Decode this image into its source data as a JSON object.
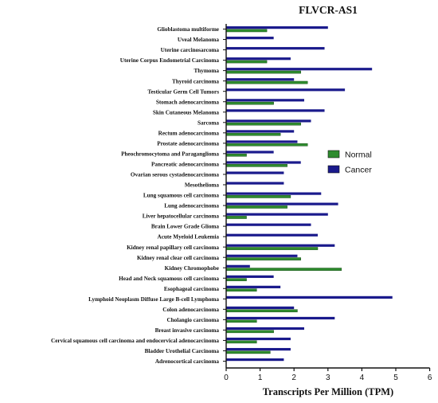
{
  "chart_data": {
    "type": "bar",
    "orientation": "horizontal",
    "title": "FLVCR-AS1",
    "xlabel": "Transcripts Per Million (TPM)",
    "ylabel": "",
    "xlim": [
      0,
      6
    ],
    "xticks": [
      "0",
      "1",
      "2",
      "3",
      "4",
      "5",
      "6"
    ],
    "grid": false,
    "legend_position": "right",
    "categories": [
      "Glioblastoma multiforme",
      "Uveal Melanoma",
      "Uterine carcinosarcoma",
      "Uterine Corpus Endometrial Carcinoma",
      "Thymoma",
      "Thyroid carcinoma",
      "Testicular Germ Cell Tumors",
      "Stomach adenocarcinoma",
      "Skin Cutaneous Melanoma",
      "Sarcoma",
      "Rectum adenocarcinoma",
      "Prostate adenocarcinoma",
      "Pheochromocytoma and Paraganglioma",
      "Pancreatic adenocarcinoma",
      "Ovarian serous cystadenocarcinoma",
      "Mesothelioma",
      "Lung squamous cell carcinoma",
      "Lung adenocarcinoma",
      "Liver hepatocellular carcinoma",
      "Brain Lower Grade Glioma",
      "Acute Myeloid Leukemia",
      "Kidney renal papillary cell carcinoma",
      "Kidney renal clear cell carcinoma",
      "Kidney Chromophobe",
      "Head and Neck squamous cell carcinoma",
      "Esophageal carcinoma",
      "Lymphoid Neoplasm Diffuse Large B-cell Lymphoma",
      "Colon adenocarcinoma",
      "Cholangio carcinoma",
      "Breast invasive carcinoma",
      "Cervical squamous cell carcinoma and endocervical adenocarcinoma",
      "Bladder Urothelial Carcinoma",
      "Adrenocortical carcinoma"
    ],
    "series": [
      {
        "name": "Cancer",
        "color": "#1a1a8c",
        "values": [
          3.0,
          1.4,
          2.9,
          1.9,
          4.3,
          2.0,
          3.5,
          2.3,
          2.9,
          2.5,
          2.0,
          2.1,
          1.4,
          2.2,
          1.7,
          1.7,
          2.8,
          3.3,
          3.0,
          2.5,
          2.7,
          3.2,
          2.1,
          0.7,
          1.4,
          1.6,
          4.9,
          2.0,
          3.2,
          2.3,
          1.9,
          1.9,
          1.7
        ]
      },
      {
        "name": "Normal",
        "color": "#2e8b2e",
        "values": [
          1.2,
          null,
          null,
          1.2,
          2.2,
          2.4,
          null,
          1.4,
          null,
          2.2,
          1.6,
          2.4,
          0.6,
          1.8,
          null,
          null,
          1.9,
          1.8,
          0.6,
          null,
          null,
          2.7,
          2.2,
          3.4,
          0.6,
          0.9,
          null,
          2.1,
          0.9,
          1.4,
          0.9,
          1.3,
          null
        ]
      }
    ]
  }
}
